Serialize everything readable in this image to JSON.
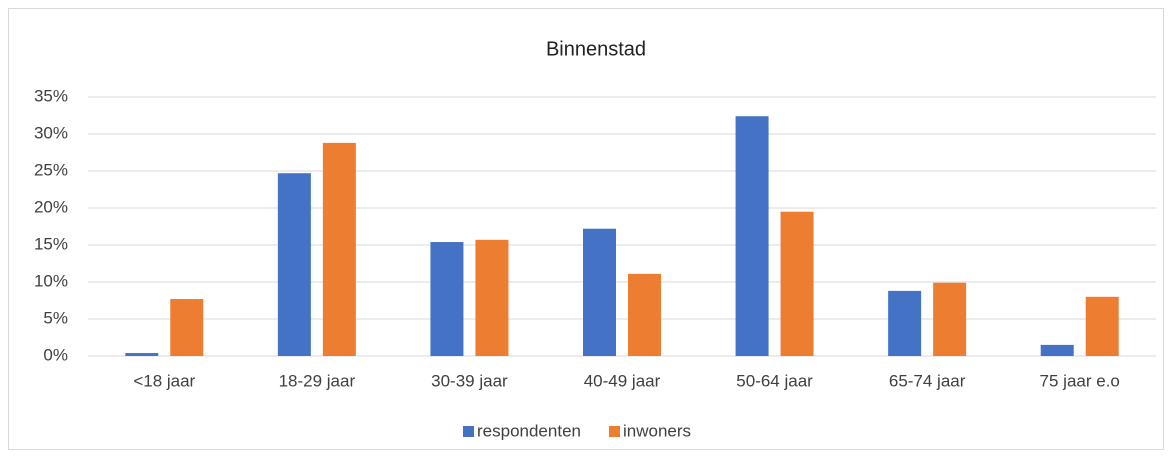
{
  "chart_data": {
    "type": "bar",
    "title": "Binnenstad",
    "categories": [
      "<18 jaar",
      "18-29 jaar",
      "30-39 jaar",
      "40-49 jaar",
      "50-64 jaar",
      "65-74 jaar",
      "75 jaar e.o"
    ],
    "series": [
      {
        "name": "respondenten",
        "color": "#4472c4",
        "values": [
          0.4,
          24.7,
          15.4,
          17.2,
          32.4,
          8.8,
          1.5
        ]
      },
      {
        "name": "inwoners",
        "color": "#ed7d31",
        "values": [
          7.7,
          28.8,
          15.7,
          11.1,
          19.5,
          9.9,
          8.0
        ]
      }
    ],
    "ylim": [
      0,
      35
    ],
    "yticks": [
      {
        "value": 0,
        "label": "0%"
      },
      {
        "value": 5,
        "label": "5%"
      },
      {
        "value": 10,
        "label": "10%"
      },
      {
        "value": 15,
        "label": "15%"
      },
      {
        "value": 20,
        "label": "20%"
      },
      {
        "value": 25,
        "label": "25%"
      },
      {
        "value": 30,
        "label": "30%"
      },
      {
        "value": 35,
        "label": "35%"
      }
    ],
    "grid": true,
    "legend": "bottom"
  }
}
